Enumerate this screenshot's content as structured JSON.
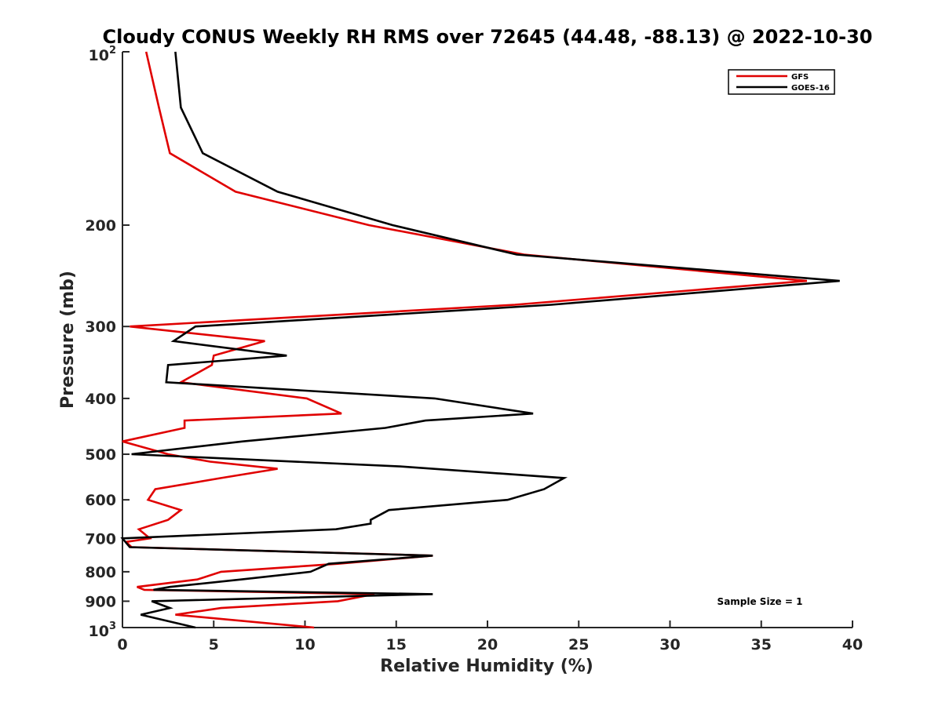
{
  "chart_data": {
    "type": "line",
    "title": "Cloudy CONUS Weekly RH RMS over 72645 (44.48, -88.13) @ 2022-10-30",
    "xlabel": "Relative Humidity (%)",
    "ylabel": "Pressure (mb)",
    "xlim": [
      0,
      40
    ],
    "ylim": [
      100,
      1000
    ],
    "y_scale": "log",
    "y_reversed": true,
    "grid": false,
    "legend_position": "top-right",
    "x_ticks": [
      "0",
      "5",
      "10",
      "15",
      "20",
      "25",
      "30",
      "35",
      "40"
    ],
    "y_ticks": [
      {
        "value": 100,
        "label": "10",
        "sup": "2"
      },
      {
        "value": 200,
        "label": "200"
      },
      {
        "value": 300,
        "label": "300"
      },
      {
        "value": 400,
        "label": "400"
      },
      {
        "value": 500,
        "label": "500"
      },
      {
        "value": 600,
        "label": "600"
      },
      {
        "value": 700,
        "label": "700"
      },
      {
        "value": 800,
        "label": "800"
      },
      {
        "value": 900,
        "label": "900"
      },
      {
        "value": 1000,
        "label": "10",
        "sup": "3"
      }
    ],
    "annotation": "Sample Size = 1",
    "series": [
      {
        "name": "GFS",
        "color": "#e00000",
        "points": [
          [
            1.3,
            100
          ],
          [
            2.0,
            125
          ],
          [
            2.6,
            150
          ],
          [
            6.2,
            175
          ],
          [
            13.5,
            200
          ],
          [
            22.0,
            225
          ],
          [
            37.5,
            250
          ],
          [
            21.5,
            275
          ],
          [
            0.4,
            300
          ],
          [
            7.8,
            318
          ],
          [
            5.0,
            337
          ],
          [
            4.9,
            350
          ],
          [
            3.2,
            375
          ],
          [
            10.1,
            400
          ],
          [
            12.0,
            425
          ],
          [
            3.4,
            437
          ],
          [
            3.4,
            450
          ],
          [
            0.0,
            475
          ],
          [
            2.5,
            500
          ],
          [
            4.8,
            515
          ],
          [
            8.5,
            530
          ],
          [
            5.4,
            550
          ],
          [
            1.8,
            575
          ],
          [
            1.4,
            600
          ],
          [
            3.2,
            625
          ],
          [
            2.5,
            650
          ],
          [
            0.9,
            675
          ],
          [
            1.5,
            700
          ],
          [
            0.2,
            710
          ],
          [
            0.5,
            725
          ],
          [
            17.0,
            750
          ],
          [
            11.8,
            775
          ],
          [
            5.4,
            800
          ],
          [
            4.1,
            825
          ],
          [
            0.8,
            850
          ],
          [
            1.2,
            860
          ],
          [
            13.8,
            875
          ],
          [
            11.8,
            900
          ],
          [
            5.4,
            925
          ],
          [
            2.9,
            950
          ],
          [
            10.5,
            1000
          ]
        ]
      },
      {
        "name": "GOES-16",
        "color": "#000000",
        "points": [
          [
            2.9,
            100
          ],
          [
            3.2,
            125
          ],
          [
            4.4,
            150
          ],
          [
            8.5,
            175
          ],
          [
            14.8,
            200
          ],
          [
            21.6,
            225
          ],
          [
            39.3,
            250
          ],
          [
            23.5,
            275
          ],
          [
            4.0,
            300
          ],
          [
            2.8,
            318
          ],
          [
            9.0,
            337
          ],
          [
            2.5,
            350
          ],
          [
            2.4,
            375
          ],
          [
            17.1,
            400
          ],
          [
            22.5,
            425
          ],
          [
            16.6,
            437
          ],
          [
            14.4,
            450
          ],
          [
            6.6,
            475
          ],
          [
            0.5,
            500
          ],
          [
            15.2,
            525
          ],
          [
            24.2,
            550
          ],
          [
            23.1,
            575
          ],
          [
            21.1,
            600
          ],
          [
            14.6,
            625
          ],
          [
            13.6,
            650
          ],
          [
            13.6,
            660
          ],
          [
            11.7,
            675
          ],
          [
            0.0,
            700
          ],
          [
            0.4,
            725
          ],
          [
            17.0,
            750
          ],
          [
            11.3,
            775
          ],
          [
            10.3,
            800
          ],
          [
            6.5,
            825
          ],
          [
            2.6,
            850
          ],
          [
            1.7,
            860
          ],
          [
            17.0,
            875
          ],
          [
            1.6,
            900
          ],
          [
            2.6,
            925
          ],
          [
            1.0,
            950
          ],
          [
            4.0,
            1000
          ]
        ]
      }
    ]
  }
}
